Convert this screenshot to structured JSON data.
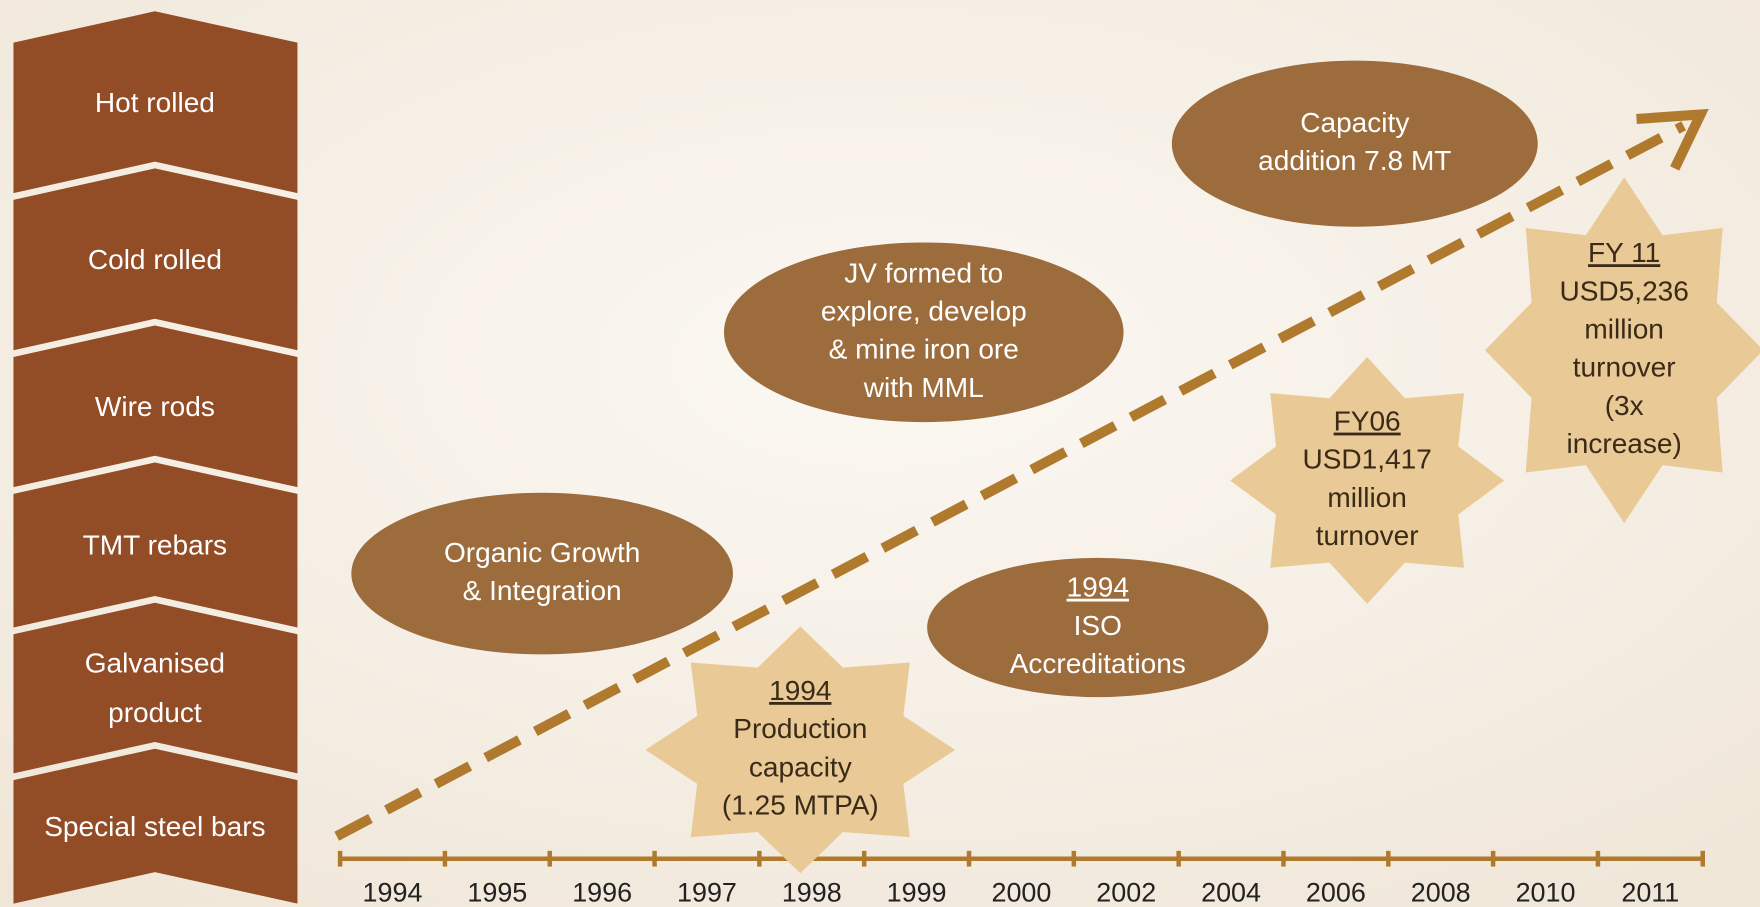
{
  "products": [
    "Hot rolled",
    "Cold rolled",
    "Wire rods",
    "TMT rebars",
    "Galvanised product",
    "Special steel bars"
  ],
  "timeline": {
    "years": [
      "1994",
      "1995",
      "1996",
      "1997",
      "1998",
      "1999",
      "2000",
      "2002",
      "2004",
      "2006",
      "2008",
      "2010",
      "2011"
    ]
  },
  "milestones": [
    {
      "shape": "ellipse",
      "lines": [
        "Organic Growth",
        "& Integration"
      ]
    },
    {
      "shape": "ellipse",
      "lines": [
        "JV formed to",
        "explore, develop",
        "& mine iron ore",
        "with MML"
      ]
    },
    {
      "shape": "ellipse",
      "lines": [
        "Capacity",
        "addition 7.8 MT"
      ]
    },
    {
      "shape": "ellipse",
      "heading": "1994",
      "lines": [
        "ISO",
        "Accreditations"
      ]
    },
    {
      "shape": "star",
      "heading": "1994",
      "lines": [
        "Production",
        "capacity",
        "(1.25 MTPA)"
      ]
    },
    {
      "shape": "star",
      "heading": "FY06",
      "lines": [
        "USD1,417",
        "million",
        "turnover"
      ]
    },
    {
      "shape": "star",
      "heading": "FY 11",
      "lines": [
        "USD5,236",
        "million",
        "turnover",
        "(3x",
        "increase)"
      ]
    }
  ]
}
